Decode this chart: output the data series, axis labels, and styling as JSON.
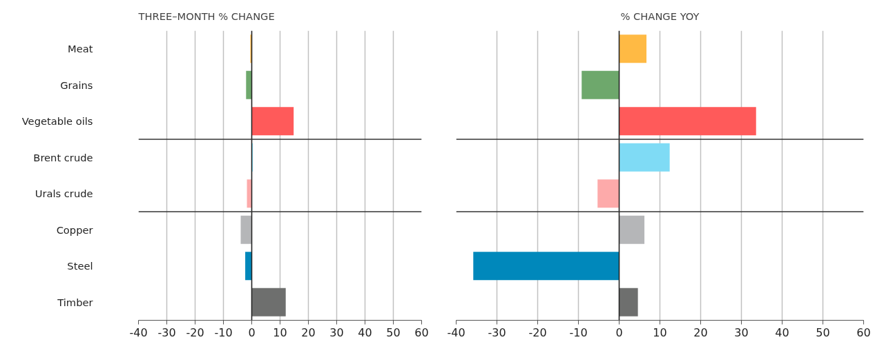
{
  "chart_data": [
    {
      "type": "bar",
      "orientation": "horizontal",
      "title": "THREE–MONTH % CHANGE",
      "categories": [
        "Meat",
        "Grains",
        "Vegetable oils",
        "Brent crude",
        "Urals crude",
        "Copper",
        "Steel",
        "Timber"
      ],
      "values": [
        -0.5,
        -2,
        14.8,
        0.4,
        -1.7,
        -3.9,
        -2.3,
        12
      ],
      "colors": [
        "#ffba44",
        "#6ea86c",
        "#ff5a5a",
        "#7fdbf5",
        "#fdaaaa",
        "#b5b6b8",
        "#0088bb",
        "#6e6f6e"
      ],
      "xlim": [
        -40,
        60
      ],
      "xticks": [
        -40,
        -30,
        -20,
        -10,
        0,
        10,
        20,
        30,
        40,
        50,
        60
      ],
      "grid": "x"
    },
    {
      "type": "bar",
      "orientation": "horizontal",
      "title": "% CHANGE YOY",
      "categories": [
        null,
        null,
        null,
        null,
        null,
        null,
        null,
        null
      ],
      "values": [
        6.7,
        -9.2,
        33.6,
        12.4,
        -5.3,
        6.2,
        -35.8,
        4.6
      ],
      "colors": [
        "#ffba44",
        "#6ea86c",
        "#ff5a5a",
        "#7fdbf5",
        "#fdaaaa",
        "#b5b6b8",
        "#0088bb",
        "#6e6f6e"
      ],
      "xlim": [
        -40,
        60
      ],
      "xticks": [
        -40,
        -30,
        -20,
        -10,
        0,
        10,
        20,
        30,
        40,
        50,
        60
      ],
      "grid": "x",
      "tick_labels": "x"
    }
  ]
}
